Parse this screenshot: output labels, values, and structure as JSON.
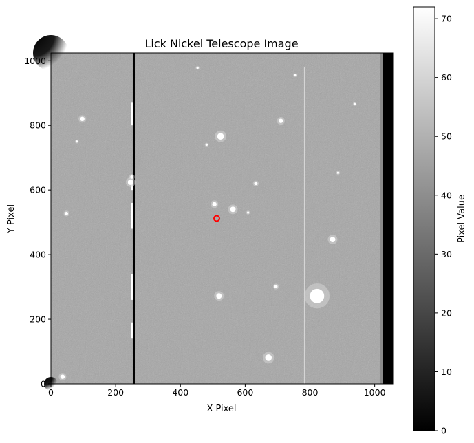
{
  "chart_data": {
    "type": "heatmap",
    "title": "Lick Nickel Telescope Image",
    "xlabel": "X Pixel",
    "ylabel": "Y Pixel",
    "xlim": [
      0,
      1056
    ],
    "ylim": [
      0,
      1024
    ],
    "x_ticks": [
      0,
      200,
      400,
      600,
      800,
      1000
    ],
    "y_ticks": [
      0,
      200,
      400,
      600,
      800,
      1000
    ],
    "colormap": "gray",
    "colorbar": {
      "label": "Pixel Value",
      "range": [
        0,
        72
      ],
      "ticks": [
        0,
        10,
        20,
        30,
        40,
        50,
        60,
        70
      ]
    },
    "background_level": 52,
    "bad_columns": [
      {
        "x": 256,
        "kind": "dead",
        "value": 0
      },
      {
        "x": 783,
        "kind": "faint",
        "value": 60
      }
    ],
    "dark_edge_x_start": 1024,
    "stars": [
      {
        "x": 97,
        "y": 820,
        "r": 4
      },
      {
        "x": 48,
        "y": 527,
        "r": 3
      },
      {
        "x": 36,
        "y": 22,
        "r": 4
      },
      {
        "x": 80,
        "y": 750,
        "r": 2
      },
      {
        "x": 246,
        "y": 624,
        "r": 5
      },
      {
        "x": 250,
        "y": 640,
        "r": 3
      },
      {
        "x": 524,
        "y": 766,
        "r": 6
      },
      {
        "x": 481,
        "y": 740,
        "r": 2
      },
      {
        "x": 505,
        "y": 556,
        "r": 4
      },
      {
        "x": 562,
        "y": 540,
        "r": 5
      },
      {
        "x": 633,
        "y": 620,
        "r": 3
      },
      {
        "x": 710,
        "y": 814,
        "r": 4
      },
      {
        "x": 519,
        "y": 272,
        "r": 5
      },
      {
        "x": 695,
        "y": 301,
        "r": 3
      },
      {
        "x": 672,
        "y": 81,
        "r": 6
      },
      {
        "x": 870,
        "y": 447,
        "r": 5
      },
      {
        "x": 822,
        "y": 272,
        "r": 13
      },
      {
        "x": 754,
        "y": 955,
        "r": 2
      },
      {
        "x": 453,
        "y": 978,
        "r": 2
      },
      {
        "x": 609,
        "y": 530,
        "r": 2
      },
      {
        "x": 938,
        "y": 866,
        "r": 2
      },
      {
        "x": 887,
        "y": 653,
        "r": 2
      }
    ],
    "marker": {
      "x": 512,
      "y": 512,
      "color": "#ff0000"
    }
  }
}
